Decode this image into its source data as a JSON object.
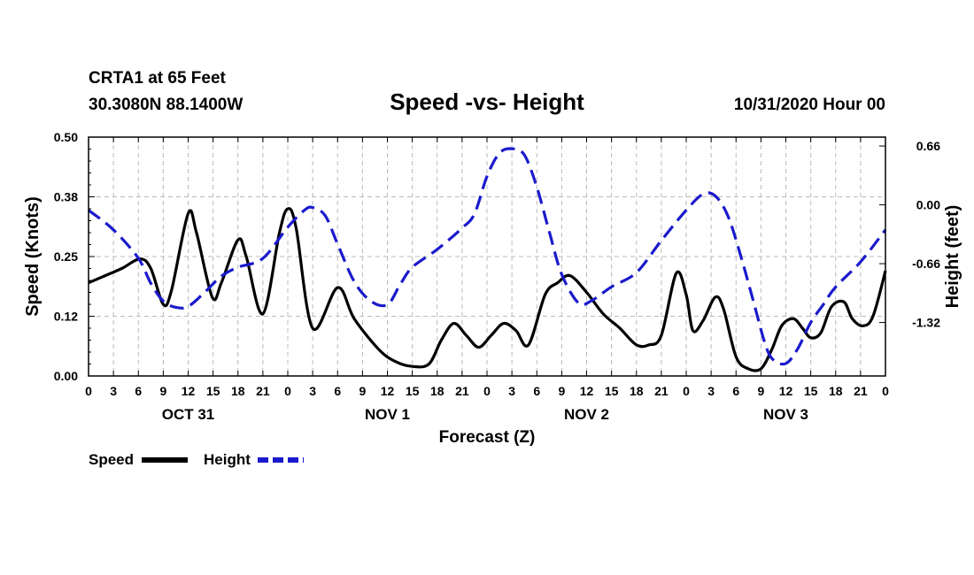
{
  "chart_data": {
    "type": "line",
    "station": "CRTA1 at 65 Feet",
    "location": "30.3080N 88.1400W",
    "title": "Speed -vs- Height",
    "issued": "10/31/2020 Hour 00",
    "xlabel": "Forecast (Z)",
    "ylabel_left": "Speed (Knots)",
    "ylabel_right": "Height (feet)",
    "x_unit": "forecast hour",
    "xlim": [
      0,
      96
    ],
    "ylim_left": [
      0.0,
      0.5
    ],
    "ylim_right": [
      -1.92,
      0.76
    ],
    "left_ticks": [
      {
        "value": 0.0,
        "label": "0.00"
      },
      {
        "value": 0.125,
        "label": "0.12"
      },
      {
        "value": 0.25,
        "label": "0.25"
      },
      {
        "value": 0.375,
        "label": "0.38"
      },
      {
        "value": 0.5,
        "label": "0.50"
      }
    ],
    "right_ticks": [
      {
        "value": 0.66,
        "label": "0.66"
      },
      {
        "value": 0.0,
        "label": "0.00"
      },
      {
        "value": -0.66,
        "label": "-0.66"
      },
      {
        "value": -1.32,
        "label": "-1.32"
      }
    ],
    "x_ticks": [
      {
        "hour": 0,
        "label": "0"
      },
      {
        "hour": 3,
        "label": "3"
      },
      {
        "hour": 6,
        "label": "6"
      },
      {
        "hour": 9,
        "label": "9"
      },
      {
        "hour": 12,
        "label": "12"
      },
      {
        "hour": 15,
        "label": "15"
      },
      {
        "hour": 18,
        "label": "18"
      },
      {
        "hour": 21,
        "label": "21"
      },
      {
        "hour": 24,
        "label": "0"
      },
      {
        "hour": 27,
        "label": "3"
      },
      {
        "hour": 30,
        "label": "6"
      },
      {
        "hour": 33,
        "label": "9"
      },
      {
        "hour": 36,
        "label": "12"
      },
      {
        "hour": 39,
        "label": "15"
      },
      {
        "hour": 42,
        "label": "18"
      },
      {
        "hour": 45,
        "label": "21"
      },
      {
        "hour": 48,
        "label": "0"
      },
      {
        "hour": 51,
        "label": "3"
      },
      {
        "hour": 54,
        "label": "6"
      },
      {
        "hour": 57,
        "label": "9"
      },
      {
        "hour": 60,
        "label": "12"
      },
      {
        "hour": 63,
        "label": "15"
      },
      {
        "hour": 66,
        "label": "18"
      },
      {
        "hour": 69,
        "label": "21"
      },
      {
        "hour": 72,
        "label": "0"
      },
      {
        "hour": 75,
        "label": "3"
      },
      {
        "hour": 78,
        "label": "6"
      },
      {
        "hour": 81,
        "label": "9"
      },
      {
        "hour": 84,
        "label": "12"
      },
      {
        "hour": 87,
        "label": "15"
      },
      {
        "hour": 90,
        "label": "18"
      },
      {
        "hour": 93,
        "label": "21"
      },
      {
        "hour": 96,
        "label": "0"
      }
    ],
    "day_labels": [
      {
        "hour": 12,
        "label": "OCT 31"
      },
      {
        "hour": 36,
        "label": "NOV 1"
      },
      {
        "hour": 60,
        "label": "NOV 2"
      },
      {
        "hour": 84,
        "label": "NOV 3"
      }
    ],
    "legend": [
      {
        "name": "Speed",
        "color": "#000000",
        "style": "solid"
      },
      {
        "name": "Height",
        "color": "#1a1acc",
        "style": "dashed"
      }
    ],
    "series": [
      {
        "name": "Speed",
        "axis": "left",
        "color": "#000000",
        "x": [
          0,
          2,
          4,
          6.2,
          7.5,
          9,
          10,
          12,
          13,
          14.9,
          16,
          18,
          19,
          21,
          23,
          24,
          25,
          27,
          30,
          32,
          35,
          37,
          39,
          41,
          42.5,
          44,
          45.5,
          47,
          48.5,
          50,
          51.5,
          53,
          55,
          56.5,
          58,
          60,
          62,
          64,
          66,
          67.5,
          69,
          70.8,
          72,
          72.8,
          74,
          75.5,
          76.5,
          78,
          79.5,
          81,
          82.3,
          83.5,
          84.9,
          86,
          87,
          88.2,
          89.5,
          91,
          92,
          93.3,
          94.5,
          96
        ],
        "values": [
          0.195,
          0.21,
          0.225,
          0.245,
          0.225,
          0.15,
          0.18,
          0.34,
          0.3,
          0.165,
          0.195,
          0.285,
          0.25,
          0.13,
          0.3,
          0.35,
          0.31,
          0.1,
          0.185,
          0.12,
          0.055,
          0.03,
          0.02,
          0.025,
          0.075,
          0.11,
          0.085,
          0.06,
          0.085,
          0.11,
          0.095,
          0.065,
          0.17,
          0.195,
          0.21,
          0.175,
          0.13,
          0.1,
          0.065,
          0.065,
          0.085,
          0.215,
          0.17,
          0.095,
          0.115,
          0.165,
          0.14,
          0.04,
          0.015,
          0.015,
          0.055,
          0.105,
          0.12,
          0.1,
          0.08,
          0.09,
          0.145,
          0.155,
          0.12,
          0.105,
          0.125,
          0.22
        ]
      },
      {
        "name": "Height",
        "axis": "right",
        "color": "#1a1acc",
        "x": [
          0,
          3,
          6,
          7.5,
          9,
          10.5,
          12,
          14,
          16,
          18,
          21,
          24,
          26,
          27,
          28.5,
          30,
          32,
          34,
          36,
          37.5,
          39,
          42,
          45,
          46.5,
          48,
          49.5,
          51,
          52.5,
          54,
          55.5,
          57,
          59,
          60.5,
          63,
          66,
          69,
          72,
          74,
          75.5,
          77,
          78.5,
          80,
          81.5,
          82.5,
          84,
          85.4,
          87,
          88.5,
          90,
          93,
          96
        ],
        "values": [
          -0.06,
          -0.28,
          -0.6,
          -0.88,
          -1.08,
          -1.15,
          -1.14,
          -0.98,
          -0.8,
          -0.7,
          -0.6,
          -0.25,
          -0.06,
          -0.03,
          -0.12,
          -0.44,
          -0.86,
          -1.08,
          -1.12,
          -0.9,
          -0.7,
          -0.5,
          -0.26,
          -0.1,
          0.32,
          0.58,
          0.63,
          0.56,
          0.2,
          -0.3,
          -0.78,
          -1.1,
          -1.08,
          -0.92,
          -0.76,
          -0.4,
          -0.06,
          0.12,
          0.1,
          -0.12,
          -0.55,
          -1.05,
          -1.56,
          -1.74,
          -1.78,
          -1.62,
          -1.32,
          -1.12,
          -0.92,
          -0.64,
          -0.28
        ]
      }
    ]
  }
}
